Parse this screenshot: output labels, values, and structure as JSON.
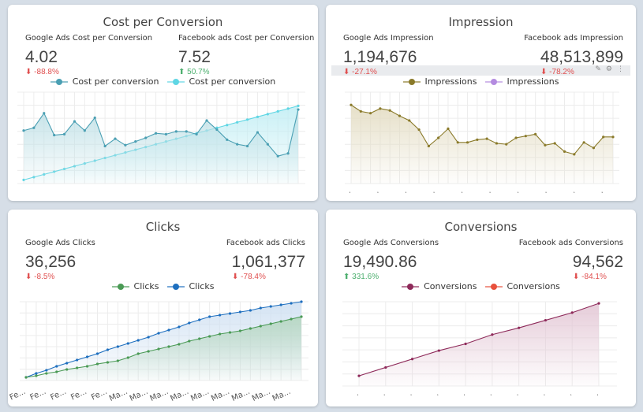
{
  "colors": {
    "background": "#d6dee7",
    "up": "#4caf6e",
    "down": "#e05050"
  },
  "panels": [
    {
      "title": "Cost per Conversion",
      "left": {
        "label": "Google Ads Cost per Conversion",
        "value": "4.02",
        "delta": "-88.8%",
        "trend": "down"
      },
      "right": {
        "label": "Facebook ads Cost per Conversion",
        "value": "7.52",
        "delta": "50.7%",
        "trend": "up"
      },
      "chart_data": {
        "type": "area",
        "x_labels": [],
        "grid": true,
        "ylim": [
          0,
          100
        ],
        "series": [
          {
            "name": "Cost per conversion",
            "color": "#4a9fb3",
            "fill": "#bfe0e6",
            "values": [
              58,
              61,
              77,
              53,
              54,
              68,
              58,
              72,
              41,
              49,
              42,
              46,
              50,
              55,
              54,
              57,
              57,
              54,
              69,
              59,
              48,
              43,
              41,
              56,
              43,
              30,
              33,
              81
            ]
          },
          {
            "name": "Cost per conversion",
            "color": "#5fd6e4",
            "fill": "#c2eef4",
            "values": [
              4,
              7,
              10,
              13,
              16,
              19,
              22,
              25,
              28,
              31,
              34,
              37,
              40,
              43,
              46,
              49,
              52,
              55,
              58,
              61,
              64,
              67,
              70,
              73,
              76,
              79,
              82,
              85
            ]
          }
        ]
      }
    },
    {
      "title": "Impression",
      "left": {
        "label": "Google Ads Impression",
        "value": "1,194,676",
        "delta": "-27.1%",
        "trend": "down"
      },
      "right": {
        "label": "Facebook ads Impression",
        "value": "48,513,899",
        "delta": "-78.2%",
        "trend": "down"
      },
      "toolbar": {
        "icons": [
          "pencil-icon",
          "settings-icon",
          "more-icon"
        ],
        "glyphs": [
          "✎",
          "⚙",
          "⋮"
        ]
      },
      "chart_data": {
        "type": "area",
        "x_labels": [
          ".",
          ".",
          ".",
          ".",
          ".",
          ".",
          ".",
          ".",
          ".",
          "."
        ],
        "grid": true,
        "ylim": [
          0,
          100
        ],
        "series": [
          {
            "name": "Impressions",
            "color": "#8a7a2a",
            "fill": "#e3dcc2",
            "values": [
              86,
              79,
              77,
              82,
              80,
              74,
              69,
              59,
              41,
              50,
              60,
              45,
              45,
              48,
              49,
              44,
              43,
              50,
              52,
              54,
              42,
              44,
              35,
              32,
              45,
              39,
              51,
              51
            ]
          },
          {
            "name": "Impressions",
            "color": "#b48be0",
            "fill": "none",
            "values": []
          }
        ]
      }
    },
    {
      "title": "Clicks",
      "left": {
        "label": "Google Ads Clicks",
        "value": "36,256",
        "delta": "-8.5%",
        "trend": "down"
      },
      "right": {
        "label": "Facebook ads Clicks",
        "value": "1,061,377",
        "delta": "-78.4%",
        "trend": "down"
      },
      "chart_data": {
        "type": "area",
        "x_labels": [
          "Fe...",
          "Fe...",
          "Fe...",
          "Fe...",
          "Fe...",
          "Ma...",
          "Ma...",
          "Ma...",
          "Ma...",
          "Ma...",
          "Ma...",
          "Ma...",
          "Ma...",
          "Ma..."
        ],
        "grid": true,
        "ylim": [
          0,
          100
        ],
        "series": [
          {
            "name": "Clicks",
            "color": "#4a9a55",
            "fill": "#b5d6c0",
            "values": [
              4,
              6,
              9,
              11,
              14,
              16,
              18,
              21,
              23,
              25,
              29,
              34,
              37,
              40,
              43,
              46,
              50,
              53,
              56,
              59,
              61,
              63,
              66,
              69,
              72,
              75,
              78,
              81
            ]
          },
          {
            "name": "Clicks",
            "color": "#1e6fbf",
            "fill": "#cfe0f2",
            "values": [
              4,
              9,
              13,
              18,
              22,
              26,
              30,
              34,
              39,
              43,
              47,
              51,
              55,
              60,
              64,
              68,
              73,
              77,
              81,
              83,
              85,
              87,
              89,
              92,
              94,
              96,
              98,
              100
            ]
          }
        ]
      }
    },
    {
      "title": "Conversions",
      "left": {
        "label": "Google Ads Conversions",
        "value": "19,490.86",
        "delta": "331.6%",
        "trend": "up"
      },
      "right": {
        "label": "Facebook ads Conversions",
        "value": "94,562",
        "delta": "-84.1%",
        "trend": "down"
      },
      "chart_data": {
        "type": "area",
        "x_labels": [
          ".",
          ".",
          ".",
          ".",
          ".",
          ".",
          ".",
          ".",
          ".",
          "."
        ],
        "grid": true,
        "ylim": [
          0,
          100
        ],
        "series": [
          {
            "name": "Conversions",
            "color": "#8e2a5a",
            "fill": "#e3c7d5",
            "values": [
              12,
              22,
              32,
              42,
              50,
              61,
              69,
              78,
              87,
              98
            ]
          },
          {
            "name": "Conversions",
            "color": "#e8503c",
            "fill": "none",
            "values": []
          }
        ]
      }
    }
  ]
}
